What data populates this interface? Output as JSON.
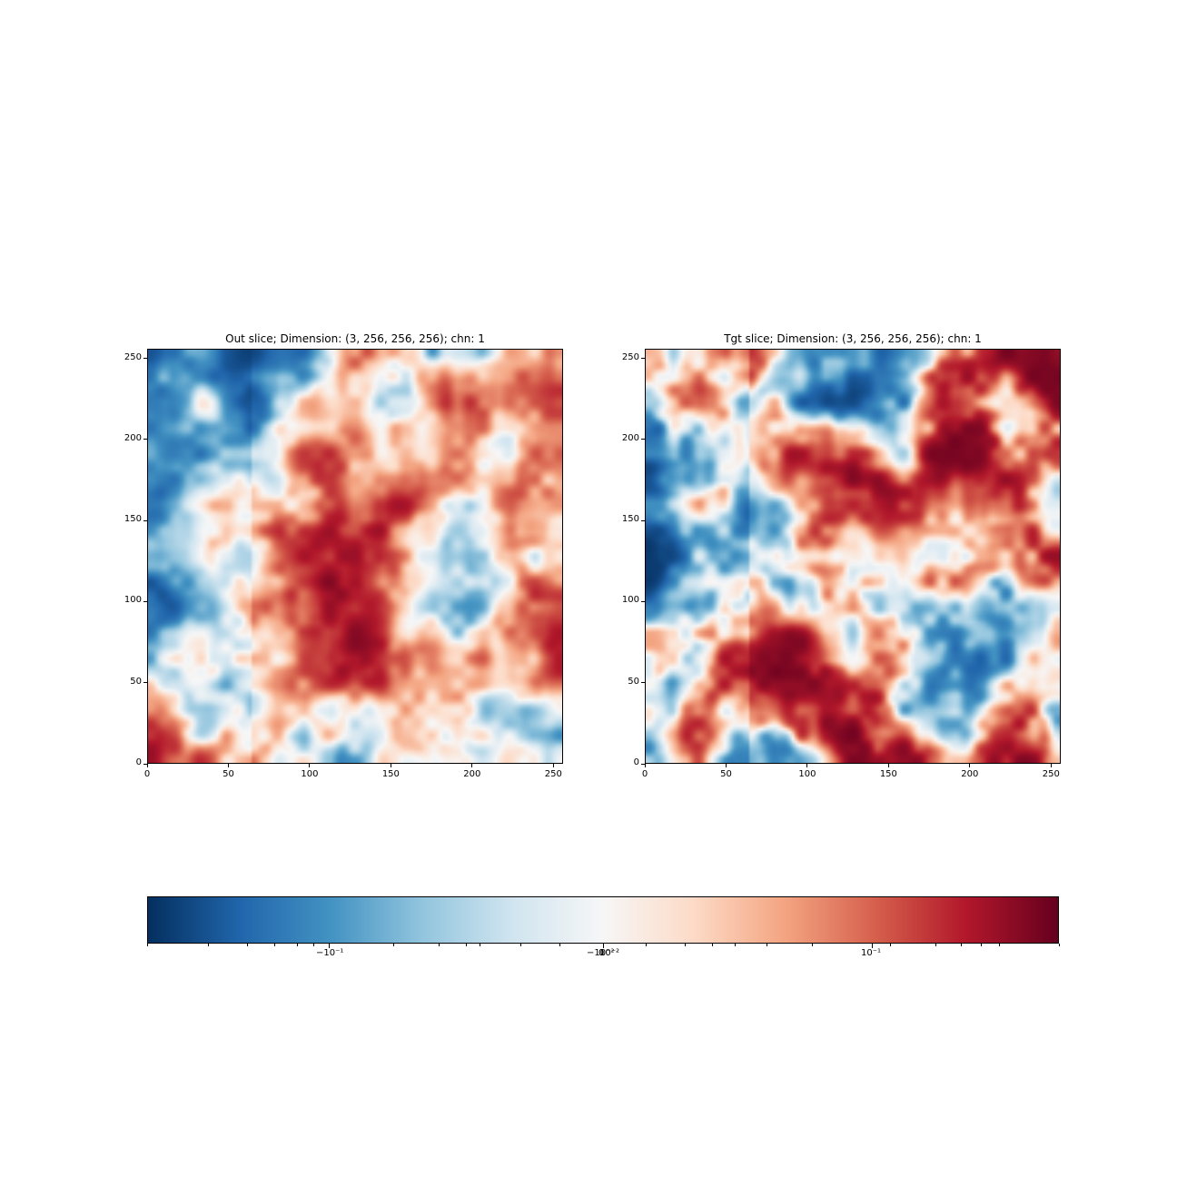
{
  "figure": {
    "panels": [
      {
        "id": "out",
        "title": "Out slice; Dimension: (3, 256, 256, 256); chn: 1"
      },
      {
        "id": "tgt",
        "title": "Tgt slice; Dimension: (3, 256, 256, 256); chn: 1"
      }
    ]
  },
  "chart_data": [
    {
      "type": "heatmap",
      "title": "Out slice; Dimension: (3, 256, 256, 256); chn: 1",
      "xlim": [
        0,
        256
      ],
      "ylim": [
        0,
        256
      ],
      "xticks": [
        "0",
        "50",
        "100",
        "150",
        "200",
        "250"
      ],
      "yticks": [
        "0",
        "50",
        "100",
        "150",
        "200",
        "250"
      ],
      "colormap": "RdBu_r",
      "scale": "symlog",
      "grid": false
    },
    {
      "type": "heatmap",
      "title": "Tgt slice; Dimension: (3, 256, 256, 256); chn: 1",
      "xlim": [
        0,
        256
      ],
      "ylim": [
        0,
        256
      ],
      "xticks": [
        "0",
        "50",
        "100",
        "150",
        "200",
        "250"
      ],
      "yticks": [
        "0",
        "50",
        "100",
        "150",
        "200",
        "250"
      ],
      "colormap": "RdBu_r",
      "scale": "symlog",
      "grid": false
    }
  ],
  "colorbar": {
    "orientation": "horizontal",
    "scale": "symlog",
    "major_tick_labels": [
      "−10⁻¹",
      "−10⁻²",
      "0",
      "10⁻²",
      "10⁻¹"
    ],
    "colors": [
      "#053061",
      "#2166ac",
      "#4393c3",
      "#92c5de",
      "#d1e5f0",
      "#f7f7f7",
      "#fddbc7",
      "#f4a582",
      "#d6604d",
      "#b2182b",
      "#67001f"
    ]
  }
}
